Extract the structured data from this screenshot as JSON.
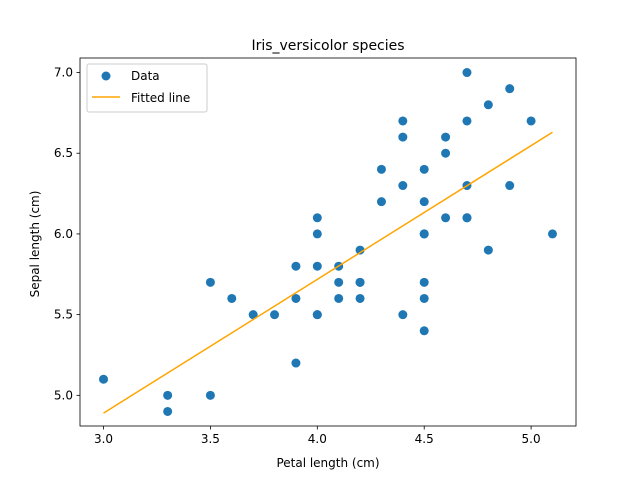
{
  "chart_data": {
    "type": "scatter",
    "title": "Iris_versicolor species",
    "xlabel": "Petal length (cm)",
    "ylabel": "Sepal length (cm)",
    "xlim": [
      2.89,
      5.21
    ],
    "ylim": [
      4.81,
      7.09
    ],
    "xticks": [
      3.0,
      3.5,
      4.0,
      4.5,
      5.0
    ],
    "xtick_labels": [
      "3.0",
      "3.5",
      "4.0",
      "4.5",
      "5.0"
    ],
    "yticks": [
      5.0,
      5.5,
      6.0,
      6.5,
      7.0
    ],
    "ytick_labels": [
      "5.0",
      "5.5",
      "6.0",
      "6.5",
      "7.0"
    ],
    "grid": false,
    "legend_position": "upper-left",
    "series": [
      {
        "name": "Data",
        "kind": "scatter",
        "color": "#1f77b4",
        "points": [
          [
            4.7,
            7.0
          ],
          [
            4.5,
            6.4
          ],
          [
            4.9,
            6.9
          ],
          [
            4.0,
            5.5
          ],
          [
            4.6,
            6.5
          ],
          [
            4.5,
            5.7
          ],
          [
            4.7,
            6.3
          ],
          [
            3.3,
            4.9
          ],
          [
            4.6,
            6.6
          ],
          [
            3.9,
            5.2
          ],
          [
            3.5,
            5.0
          ],
          [
            4.2,
            5.9
          ],
          [
            4.0,
            6.0
          ],
          [
            4.7,
            6.1
          ],
          [
            3.6,
            5.6
          ],
          [
            4.4,
            6.7
          ],
          [
            4.5,
            5.6
          ],
          [
            4.1,
            5.8
          ],
          [
            4.5,
            6.2
          ],
          [
            3.9,
            5.6
          ],
          [
            4.8,
            5.9
          ],
          [
            4.0,
            6.1
          ],
          [
            4.9,
            6.3
          ],
          [
            4.7,
            6.1
          ],
          [
            4.3,
            6.4
          ],
          [
            4.4,
            6.6
          ],
          [
            4.8,
            6.8
          ],
          [
            5.0,
            6.7
          ],
          [
            4.5,
            6.0
          ],
          [
            3.5,
            5.7
          ],
          [
            3.8,
            5.5
          ],
          [
            3.7,
            5.5
          ],
          [
            3.9,
            5.8
          ],
          [
            5.1,
            6.0
          ],
          [
            4.5,
            5.4
          ],
          [
            4.5,
            6.0
          ],
          [
            4.7,
            6.7
          ],
          [
            4.4,
            6.3
          ],
          [
            4.1,
            5.6
          ],
          [
            4.0,
            5.5
          ],
          [
            4.4,
            5.5
          ],
          [
            4.6,
            6.1
          ],
          [
            4.0,
            5.8
          ],
          [
            3.3,
            5.0
          ],
          [
            4.2,
            5.6
          ],
          [
            4.2,
            5.7
          ],
          [
            4.2,
            5.7
          ],
          [
            4.3,
            6.2
          ],
          [
            3.0,
            5.1
          ],
          [
            4.1,
            5.7
          ]
        ]
      },
      {
        "name": "Fitted line",
        "kind": "line",
        "color": "#ffa500",
        "points": [
          [
            3.0,
            4.89
          ],
          [
            5.1,
            6.63
          ]
        ]
      }
    ]
  }
}
